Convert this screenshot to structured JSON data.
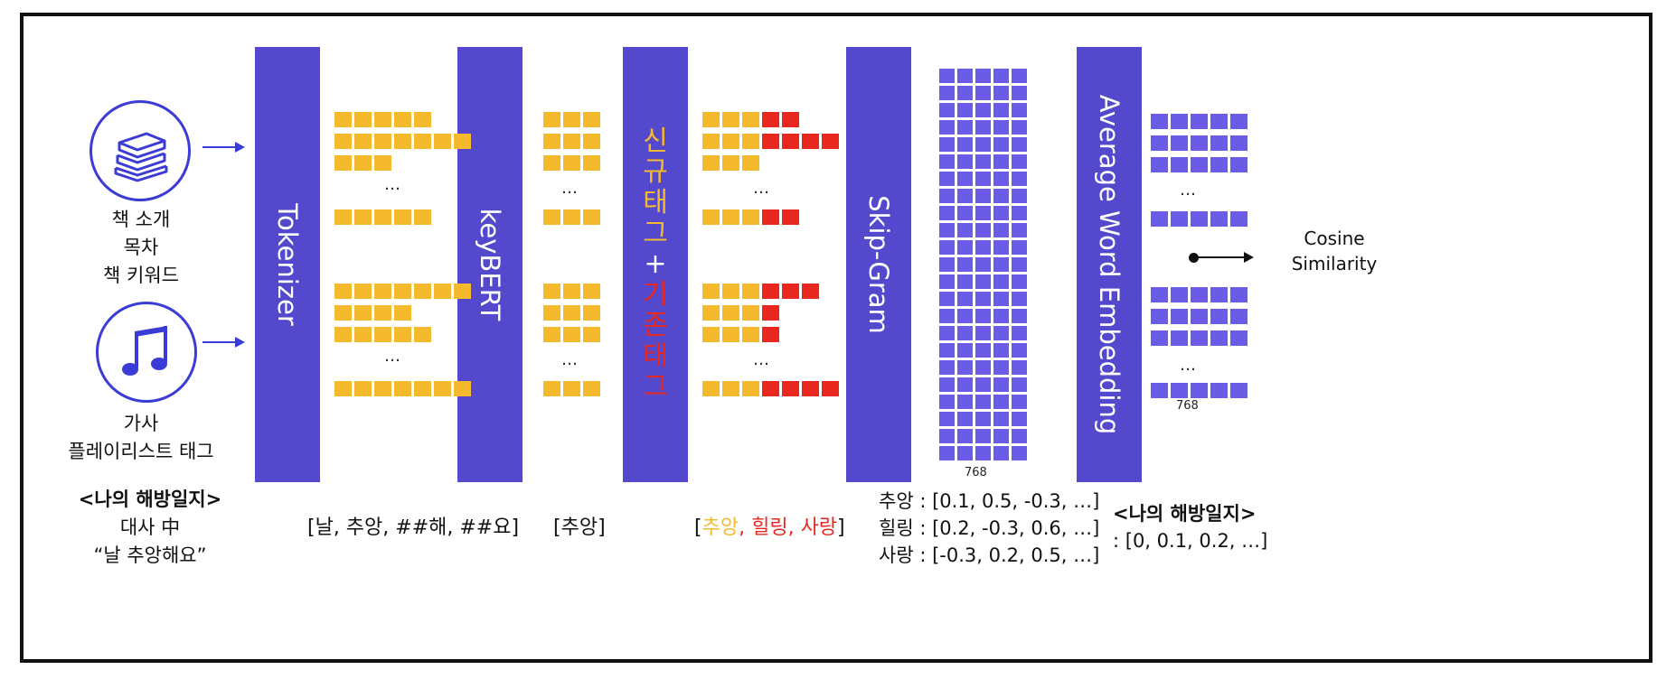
{
  "inputs": {
    "book_lines": [
      "책 소개",
      "목차",
      "책 키워드"
    ],
    "music_lines": [
      "가사",
      "플레이리스트 태그"
    ],
    "example": {
      "title": "<나의 해방일지>",
      "line2": "대사 中",
      "line3": "“날 추앙해요”"
    }
  },
  "stages": {
    "tokenizer": "Tokenizer",
    "keybert": "keyBERT",
    "tag_new": "신규태그",
    "tag_plus": "+",
    "tag_existing": "기존태그",
    "skipgram": "Skip-Gram",
    "avg_embed": "Average Word Embedding"
  },
  "outputs": {
    "tokens": "[날, 추앙, ##해, ##요]",
    "keywords": "[추앙]",
    "tags_open": "[",
    "tag_1": "추앙",
    "tag_sep1": ", ",
    "tag_2": "힐링",
    "tag_sep2": ", ",
    "tag_3": "사랑",
    "tags_close": "]",
    "vectors": [
      "추앙 : [0.1, 0.5, -0.3, …]",
      "힐링 : [0.2, -0.3, 0.6, …]",
      "사랑 : [-0.3, 0.2, 0.5, …]"
    ],
    "avg_title": "<나의 해방일지>",
    "avg_vec": ": [0, 0.1, 0.2, …]"
  },
  "dims": {
    "grid_dim": "768",
    "embed_dim": "768"
  },
  "ellipsis": "…",
  "result": {
    "line1": "Cosine",
    "line2": "Similarity"
  },
  "colors": {
    "bar": "#5449cc",
    "token_yellow": "#f5b92e",
    "tag_red": "#e8281e",
    "grid_purple": "#6a5ce6",
    "arrow": "#3b3bd6"
  }
}
